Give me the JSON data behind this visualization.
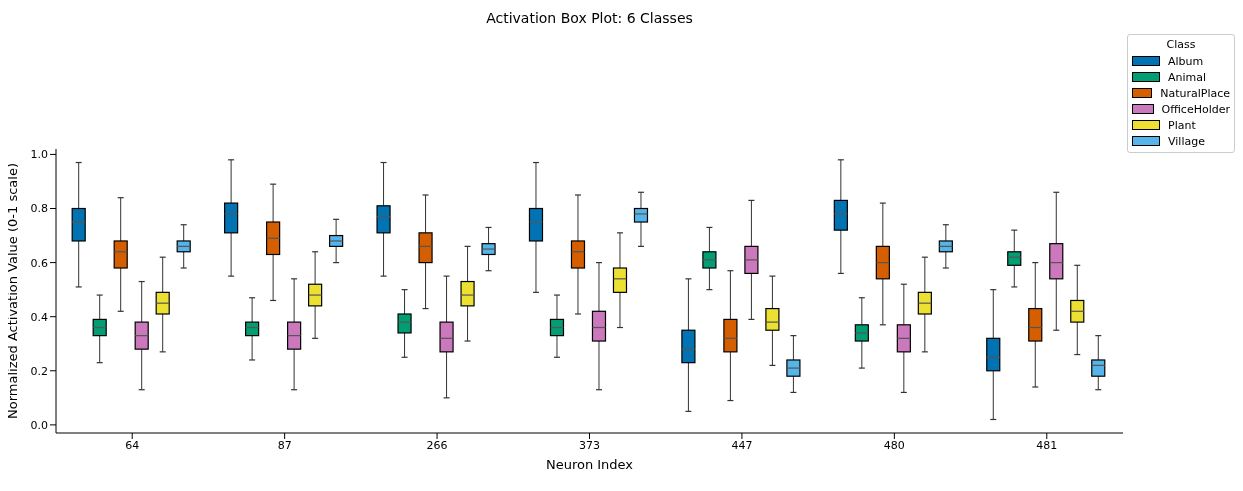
{
  "chart_data": {
    "type": "box",
    "title": "Activation Box Plot: 6 Classes",
    "xlabel": "Neuron Index",
    "ylabel": "Normalized Activation Value (0-1 scale)",
    "legend_title": "Class",
    "legend": "top right",
    "categories": [
      "64",
      "87",
      "266",
      "373",
      "447",
      "480",
      "481"
    ],
    "ylim": [
      -0.03,
      1.02
    ],
    "yticks": [
      {
        "value": 0,
        "label": "0.0"
      },
      {
        "value": 0.2,
        "label": "0.2"
      },
      {
        "value": 0.4,
        "label": "0.4"
      },
      {
        "value": 0.6,
        "label": "0.6"
      },
      {
        "value": 0.8,
        "label": "0.8"
      },
      {
        "value": 1,
        "label": "1.0"
      }
    ],
    "series": [
      {
        "name": "Album",
        "color": "#0173b2",
        "boxes": [
          {
            "low": 0.51,
            "q1": 0.68,
            "median": 0.75,
            "q3": 0.8,
            "high": 0.97
          },
          {
            "low": 0.55,
            "q1": 0.71,
            "median": 0.78,
            "q3": 0.82,
            "high": 0.98
          },
          {
            "low": 0.55,
            "q1": 0.71,
            "median": 0.77,
            "q3": 0.81,
            "high": 0.97
          },
          {
            "low": 0.49,
            "q1": 0.68,
            "median": 0.75,
            "q3": 0.8,
            "high": 0.97
          },
          {
            "low": 0.05,
            "q1": 0.23,
            "median": 0.28,
            "q3": 0.35,
            "high": 0.54
          },
          {
            "low": 0.56,
            "q1": 0.72,
            "median": 0.78,
            "q3": 0.83,
            "high": 0.98
          },
          {
            "low": 0.02,
            "q1": 0.2,
            "median": 0.25,
            "q3": 0.32,
            "high": 0.5
          }
        ]
      },
      {
        "name": "Animal",
        "color": "#029e73",
        "boxes": [
          {
            "low": 0.23,
            "q1": 0.33,
            "median": 0.36,
            "q3": 0.39,
            "high": 0.48
          },
          {
            "low": 0.24,
            "q1": 0.33,
            "median": 0.36,
            "q3": 0.38,
            "high": 0.47
          },
          {
            "low": 0.25,
            "q1": 0.34,
            "median": 0.38,
            "q3": 0.41,
            "high": 0.5
          },
          {
            "low": 0.25,
            "q1": 0.33,
            "median": 0.36,
            "q3": 0.39,
            "high": 0.48
          },
          {
            "low": 0.5,
            "q1": 0.58,
            "median": 0.61,
            "q3": 0.64,
            "high": 0.73
          },
          {
            "low": 0.21,
            "q1": 0.31,
            "median": 0.34,
            "q3": 0.37,
            "high": 0.47
          },
          {
            "low": 0.51,
            "q1": 0.59,
            "median": 0.62,
            "q3": 0.64,
            "high": 0.72
          }
        ]
      },
      {
        "name": "NaturalPlace",
        "color": "#d55e00",
        "boxes": [
          {
            "low": 0.42,
            "q1": 0.58,
            "median": 0.64,
            "q3": 0.68,
            "high": 0.84
          },
          {
            "low": 0.46,
            "q1": 0.63,
            "median": 0.69,
            "q3": 0.75,
            "high": 0.89
          },
          {
            "low": 0.43,
            "q1": 0.6,
            "median": 0.66,
            "q3": 0.71,
            "high": 0.85
          },
          {
            "low": 0.41,
            "q1": 0.58,
            "median": 0.64,
            "q3": 0.68,
            "high": 0.85
          },
          {
            "low": 0.09,
            "q1": 0.27,
            "median": 0.32,
            "q3": 0.39,
            "high": 0.57
          },
          {
            "low": 0.37,
            "q1": 0.54,
            "median": 0.6,
            "q3": 0.66,
            "high": 0.82
          },
          {
            "low": 0.14,
            "q1": 0.31,
            "median": 0.36,
            "q3": 0.43,
            "high": 0.6
          }
        ]
      },
      {
        "name": "OfficeHolder",
        "color": "#cc78bc",
        "boxes": [
          {
            "low": 0.13,
            "q1": 0.28,
            "median": 0.33,
            "q3": 0.38,
            "high": 0.53
          },
          {
            "low": 0.13,
            "q1": 0.28,
            "median": 0.33,
            "q3": 0.38,
            "high": 0.54
          },
          {
            "low": 0.1,
            "q1": 0.27,
            "median": 0.32,
            "q3": 0.38,
            "high": 0.55
          },
          {
            "low": 0.13,
            "q1": 0.31,
            "median": 0.36,
            "q3": 0.42,
            "high": 0.6
          },
          {
            "low": 0.39,
            "q1": 0.56,
            "median": 0.61,
            "q3": 0.66,
            "high": 0.83
          },
          {
            "low": 0.12,
            "q1": 0.27,
            "median": 0.32,
            "q3": 0.37,
            "high": 0.52
          },
          {
            "low": 0.35,
            "q1": 0.54,
            "median": 0.6,
            "q3": 0.67,
            "high": 0.86
          }
        ]
      },
      {
        "name": "Plant",
        "color": "#ece133",
        "boxes": [
          {
            "low": 0.27,
            "q1": 0.41,
            "median": 0.45,
            "q3": 0.49,
            "high": 0.62
          },
          {
            "low": 0.32,
            "q1": 0.44,
            "median": 0.48,
            "q3": 0.52,
            "high": 0.64
          },
          {
            "low": 0.31,
            "q1": 0.44,
            "median": 0.48,
            "q3": 0.53,
            "high": 0.66
          },
          {
            "low": 0.36,
            "q1": 0.49,
            "median": 0.54,
            "q3": 0.58,
            "high": 0.71
          },
          {
            "low": 0.22,
            "q1": 0.35,
            "median": 0.38,
            "q3": 0.43,
            "high": 0.55
          },
          {
            "low": 0.27,
            "q1": 0.41,
            "median": 0.45,
            "q3": 0.49,
            "high": 0.62
          },
          {
            "low": 0.26,
            "q1": 0.38,
            "median": 0.42,
            "q3": 0.46,
            "high": 0.59
          }
        ]
      },
      {
        "name": "Village",
        "color": "#56b4e9",
        "boxes": [
          {
            "low": 0.58,
            "q1": 0.64,
            "median": 0.66,
            "q3": 0.68,
            "high": 0.74
          },
          {
            "low": 0.6,
            "q1": 0.66,
            "median": 0.68,
            "q3": 0.7,
            "high": 0.76
          },
          {
            "low": 0.57,
            "q1": 0.63,
            "median": 0.65,
            "q3": 0.67,
            "high": 0.73
          },
          {
            "low": 0.66,
            "q1": 0.75,
            "median": 0.78,
            "q3": 0.8,
            "high": 0.86
          },
          {
            "low": 0.12,
            "q1": 0.18,
            "median": 0.21,
            "q3": 0.24,
            "high": 0.33
          },
          {
            "low": 0.58,
            "q1": 0.64,
            "median": 0.66,
            "q3": 0.68,
            "high": 0.74
          },
          {
            "low": 0.13,
            "q1": 0.18,
            "median": 0.22,
            "q3": 0.24,
            "high": 0.33
          }
        ]
      }
    ]
  }
}
